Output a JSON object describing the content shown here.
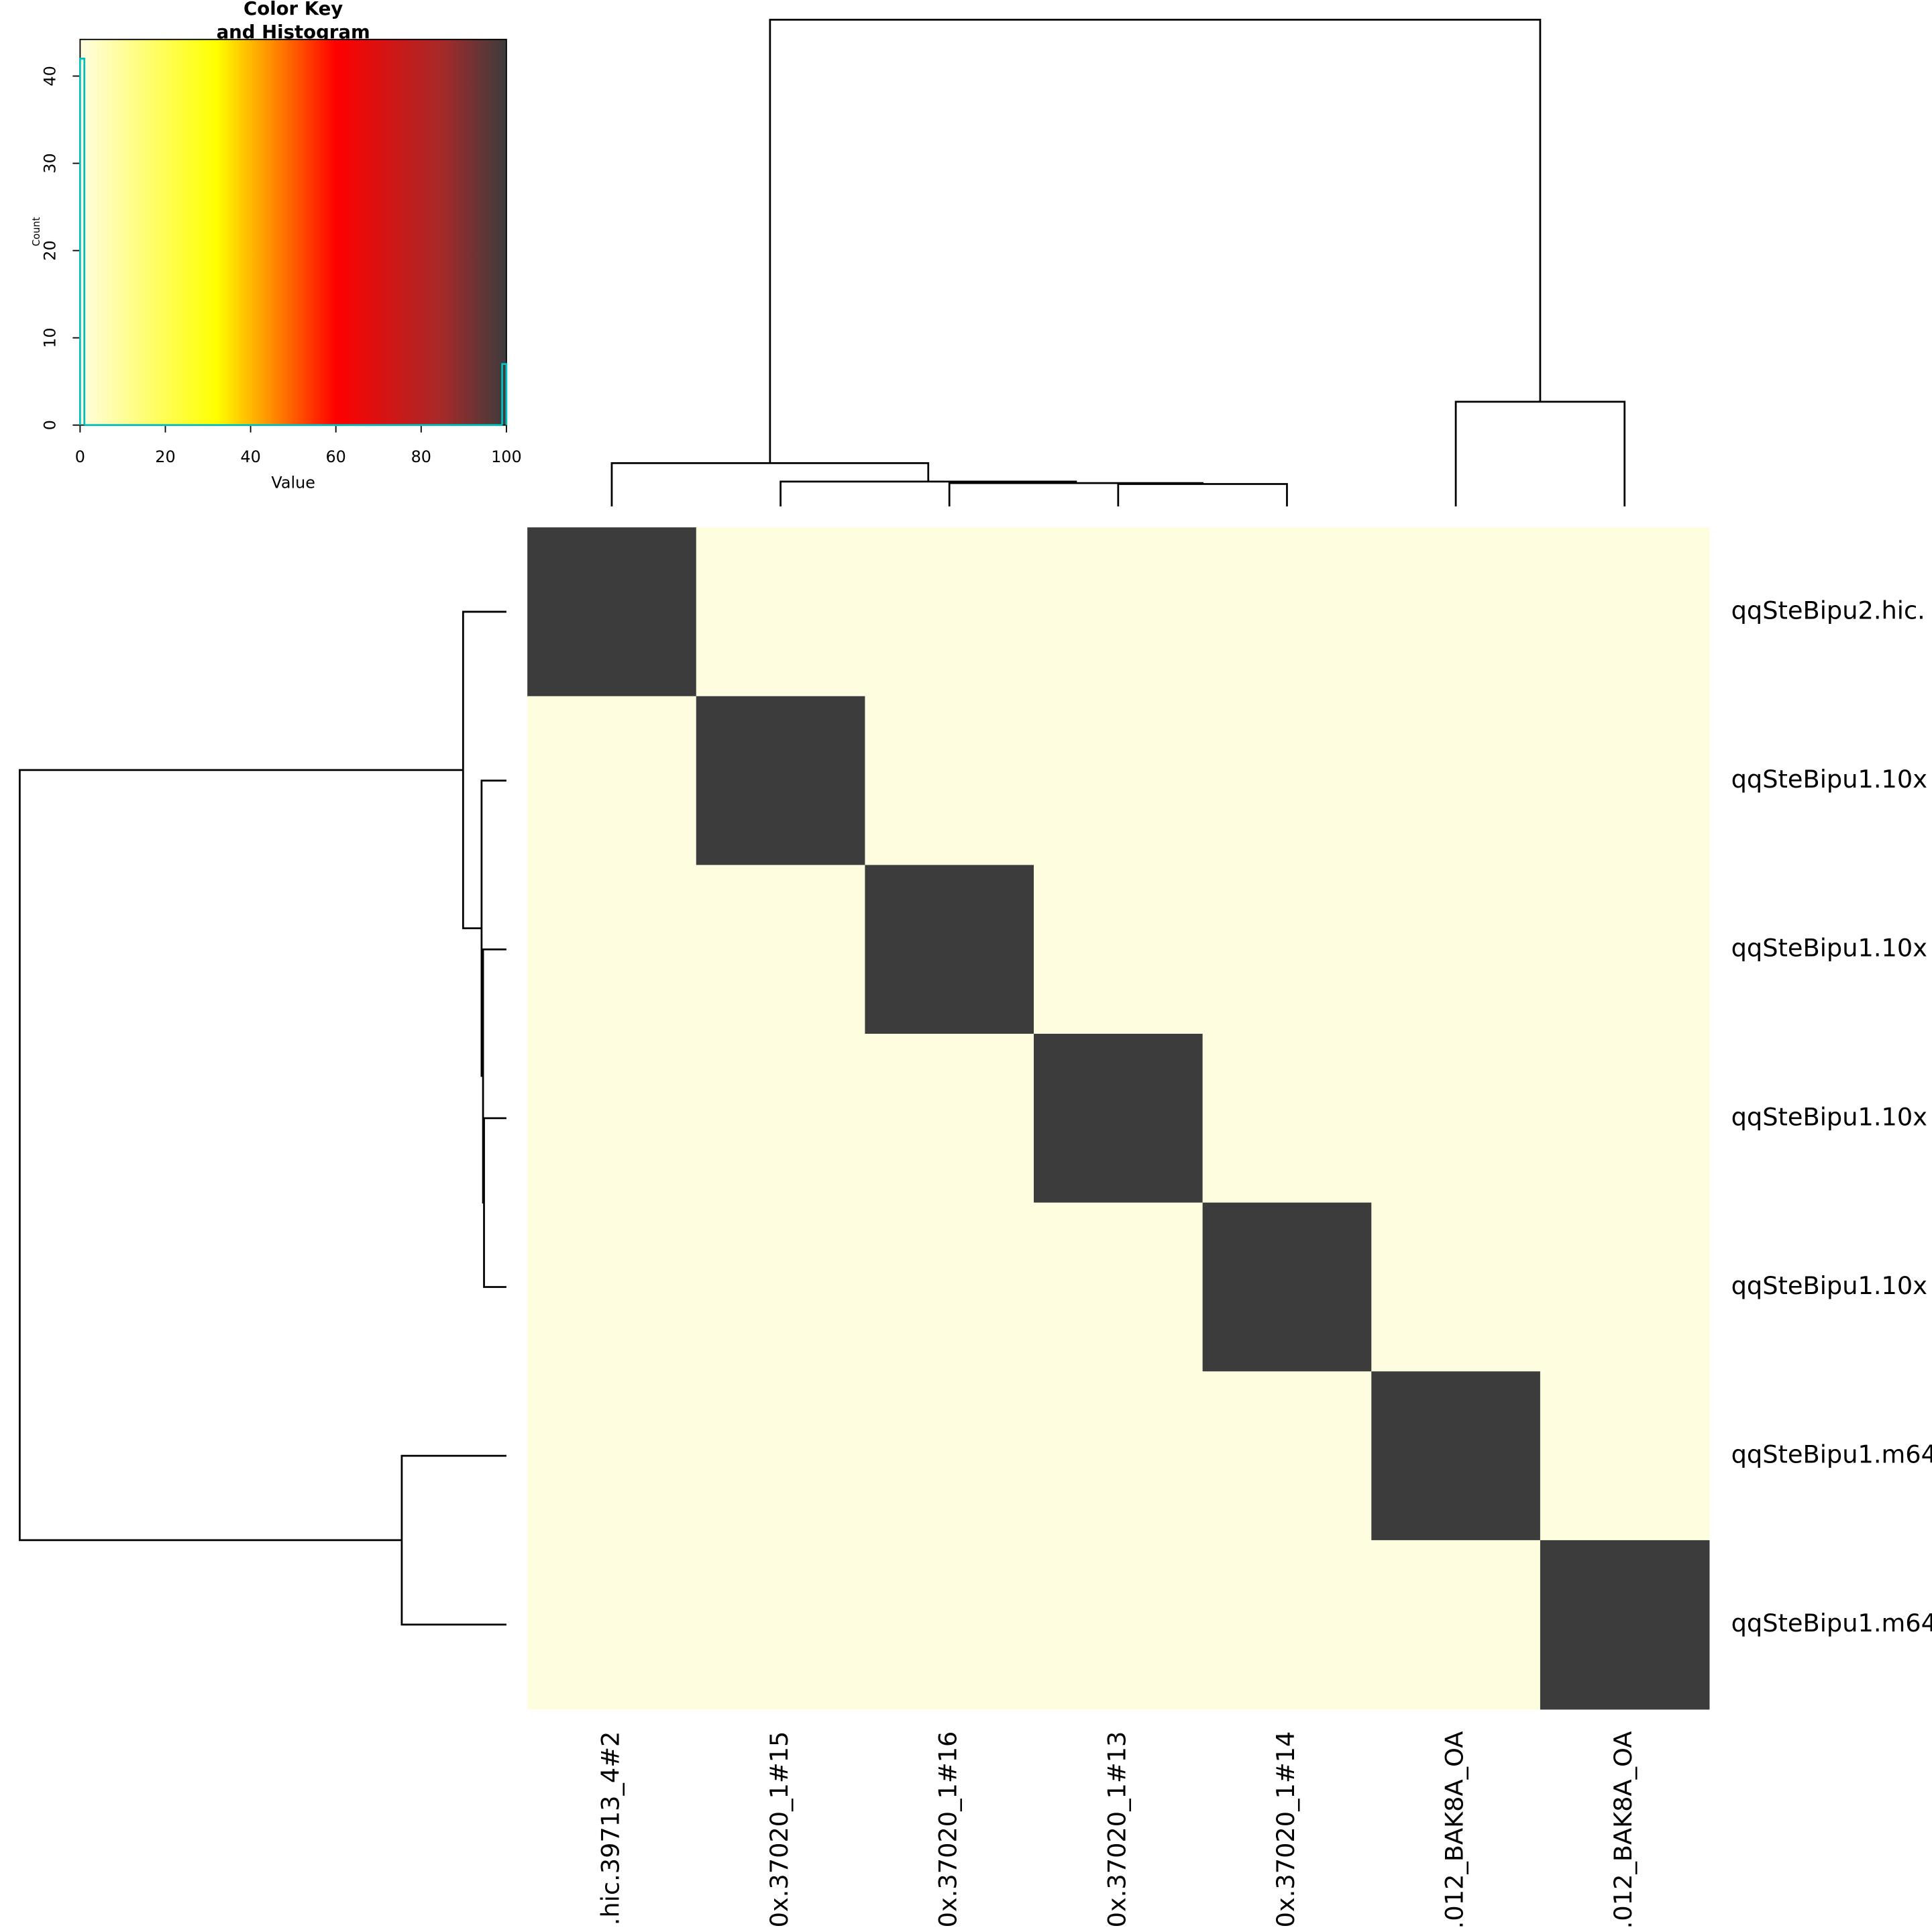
{
  "chart_data": {
    "type": "heatmap",
    "key_title": [
      "Color Key",
      "and Histogram"
    ],
    "key_xlabel": "Value",
    "key_ylabel": "Count",
    "row_labels": [
      "qqSteBipu2.hic.",
      "qqSteBipu1.10x",
      "qqSteBipu1.10x",
      "qqSteBipu1.10x",
      "qqSteBipu1.10x",
      "qqSteBipu1.m64",
      "qqSteBipu1.m64"
    ],
    "column_labels": [
      ".hic.39713_4#2",
      "0x.37020_1#15",
      "0x.37020_1#16",
      "0x.37020_1#13",
      "0x.37020_1#14",
      ".012_BAK8A_OA",
      ".012_BAK8A_OA"
    ],
    "values": [
      [
        100,
        0,
        0,
        0,
        0,
        0,
        0
      ],
      [
        0,
        100,
        0,
        0,
        0,
        0,
        0
      ],
      [
        0,
        0,
        100,
        0,
        0,
        0,
        0
      ],
      [
        0,
        0,
        0,
        100,
        0,
        0,
        0
      ],
      [
        0,
        0,
        0,
        0,
        100,
        0,
        0
      ],
      [
        0,
        0,
        0,
        0,
        0,
        100,
        0
      ],
      [
        0,
        0,
        0,
        0,
        0,
        0,
        100
      ]
    ],
    "colorscale": [
      {
        "value": 0,
        "color": "#fffde0"
      },
      {
        "value": 32,
        "color": "#ffff00"
      },
      {
        "value": 45,
        "color": "#ff8c00"
      },
      {
        "value": 60,
        "color": "#ff0000"
      },
      {
        "value": 85,
        "color": "#a52a2a"
      },
      {
        "value": 100,
        "color": "#3c3c3c"
      }
    ],
    "histogram": {
      "color": "#00c0c0",
      "bins": [
        0,
        1,
        99,
        100
      ],
      "counts": [
        42,
        0,
        7
      ]
    },
    "xlim": [
      0,
      100
    ],
    "xticks": [
      0,
      20,
      40,
      60,
      80,
      100
    ],
    "ylim": [
      0,
      44.2
    ],
    "yticks": [
      0,
      10,
      20,
      30,
      40
    ],
    "dendrogram": {
      "merges": [
        {
          "items": [
            3,
            4
          ],
          "height": 4.6
        },
        {
          "items": [
            2,
            7
          ],
          "height": 4.8
        },
        {
          "items": [
            1,
            8
          ],
          "height": 5.1
        },
        {
          "items": [
            0,
            9
          ],
          "height": 8.9
        },
        {
          "items": [
            5,
            6
          ],
          "height": 21.5
        },
        {
          "items": [
            10,
            11
          ],
          "height": 100
        }
      ]
    }
  }
}
